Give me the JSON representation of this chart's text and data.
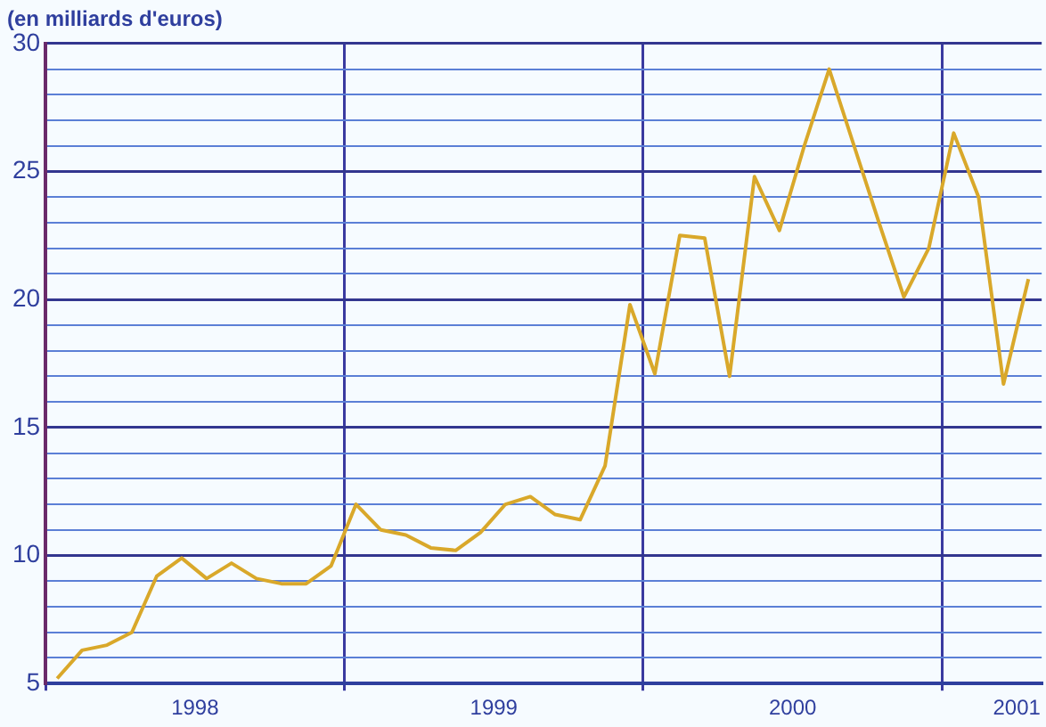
{
  "chart_data": {
    "type": "line",
    "title": "(en milliards d'euros)",
    "x": [
      "1998-01-15",
      "1998-02-15",
      "1998-03-15",
      "1998-04-15",
      "1998-05-15",
      "1998-06-15",
      "1998-07-15",
      "1998-08-15",
      "1998-09-15",
      "1998-10-15",
      "1998-11-15",
      "1998-12-15",
      "1999-01-15",
      "1999-02-15",
      "1999-03-15",
      "1999-04-15",
      "1999-05-15",
      "1999-06-15",
      "1999-07-15",
      "1999-08-15",
      "1999-09-15",
      "1999-10-15",
      "1999-11-15",
      "1999-12-15",
      "2000-01-15",
      "2000-02-15",
      "2000-03-15",
      "2000-04-15",
      "2000-05-15",
      "2000-06-15",
      "2000-07-15",
      "2000-08-15",
      "2000-09-15",
      "2000-10-15",
      "2000-11-15",
      "2000-12-15",
      "2001-01-15",
      "2001-02-15",
      "2001-03-15",
      "2001-04-15"
    ],
    "series": [
      {
        "color": "#d9a82a",
        "values": [
          5.2,
          6.3,
          6.5,
          7.0,
          9.2,
          9.9,
          9.1,
          9.7,
          9.1,
          8.9,
          8.9,
          9.6,
          12.0,
          11.0,
          10.8,
          10.3,
          10.2,
          10.9,
          12.0,
          12.3,
          11.6,
          11.4,
          13.5,
          19.8,
          17.1,
          22.5,
          22.4,
          17.0,
          24.8,
          22.7,
          26.0,
          29.0,
          26.0,
          23.0,
          20.1,
          22.0,
          26.5,
          24.0,
          16.7,
          20.8
        ]
      }
    ],
    "xlim": [
      "1998-01-01",
      "2001-05-01"
    ],
    "xticks": [
      {
        "value": "1998-01-01",
        "label": null
      },
      {
        "value": "1998-07-01",
        "label": "1998"
      },
      {
        "value": "1999-01-01",
        "label": null
      },
      {
        "value": "1999-07-01",
        "label": "1999"
      },
      {
        "value": "2000-01-01",
        "label": null
      },
      {
        "value": "2000-07-01",
        "label": "2000"
      },
      {
        "value": "2001-01-01",
        "label": null
      },
      {
        "value": "2001-04-01",
        "label": "2001"
      }
    ],
    "ylim": [
      5,
      30
    ],
    "yticks": [
      5,
      {
        "value": 6,
        "label": null
      },
      {
        "value": 7,
        "label": null
      },
      {
        "value": 8,
        "label": null
      },
      {
        "value": 9,
        "label": null
      },
      10,
      {
        "value": 11,
        "label": null
      },
      {
        "value": 12,
        "label": null
      },
      {
        "value": 13,
        "label": null
      },
      {
        "value": 14,
        "label": null
      },
      15,
      {
        "value": 16,
        "label": null
      },
      {
        "value": 17,
        "label": null
      },
      {
        "value": 18,
        "label": null
      },
      {
        "value": 19,
        "label": null
      },
      20,
      {
        "value": 21,
        "label": null
      },
      {
        "value": 22,
        "label": null
      },
      {
        "value": 23,
        "label": null
      },
      {
        "value": 24,
        "label": null
      },
      25,
      {
        "value": 26,
        "label": null
      },
      {
        "value": 27,
        "label": null
      },
      {
        "value": 28,
        "label": null
      },
      {
        "value": 29,
        "label": null
      },
      30
    ],
    "grid": true,
    "legend": false,
    "marker": "none",
    "line_style": "solid"
  }
}
